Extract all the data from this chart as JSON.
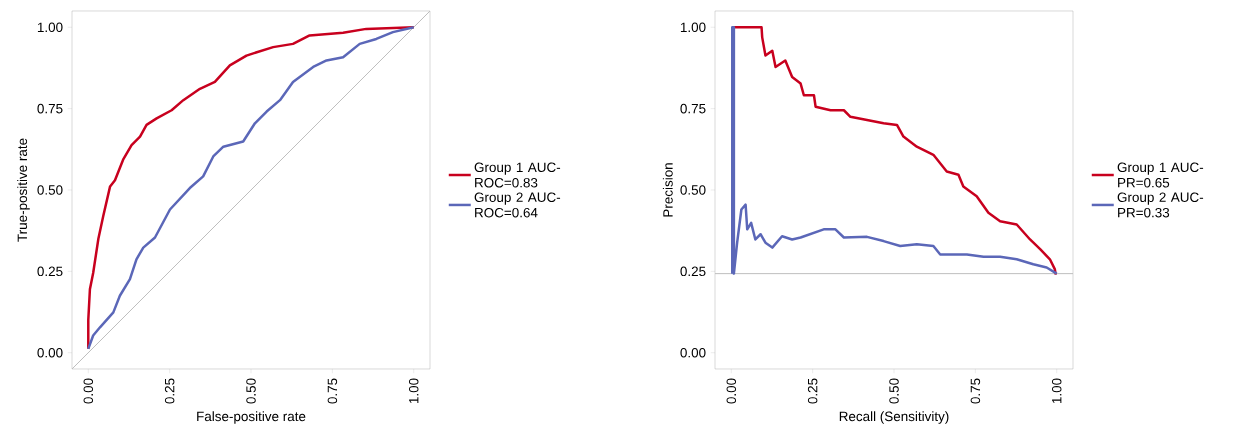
{
  "chart_data": [
    {
      "type": "line",
      "xlabel": "False-positive rate",
      "ylabel": "True-positive rate",
      "xlim": [
        -0.05,
        1.05
      ],
      "ylim": [
        -0.05,
        1.05
      ],
      "xticks": [
        {
          "value": 0,
          "label": "0.00"
        },
        {
          "value": 0.25,
          "label": "0.25"
        },
        {
          "value": 0.5,
          "label": "0.50"
        },
        {
          "value": 0.75,
          "label": "0.75"
        },
        {
          "value": 1,
          "label": "1.00"
        }
      ],
      "yticks": [
        {
          "value": 0,
          "label": "0.00"
        },
        {
          "value": 0.25,
          "label": "0.25"
        },
        {
          "value": 0.5,
          "label": "0.50"
        },
        {
          "value": 0.75,
          "label": "0.75"
        },
        {
          "value": 1,
          "label": "1.00"
        }
      ],
      "grid": false,
      "legend": "right",
      "line_style": "solid",
      "marker": "none",
      "series": [
        {
          "color": "#bebebe",
          "x": [
            -0.05,
            1.05
          ],
          "values": [
            -0.05,
            1.05
          ]
        },
        {
          "name": "Group 1 AUC-ROC=0.83",
          "color": "#c8001e",
          "x": [
            0,
            0,
            0.005,
            0.015,
            0.031,
            0.046,
            0.067,
            0.082,
            0.107,
            0.133,
            0.159,
            0.179,
            0.21,
            0.256,
            0.292,
            0.343,
            0.389,
            0.435,
            0.486,
            0.568,
            0.629,
            0.68,
            0.783,
            0.854,
            1
          ],
          "values": [
            0.012,
            0.1,
            0.195,
            0.245,
            0.35,
            0.42,
            0.511,
            0.53,
            0.593,
            0.638,
            0.664,
            0.7,
            0.72,
            0.745,
            0.776,
            0.811,
            0.832,
            0.883,
            0.913,
            0.939,
            0.949,
            0.975,
            0.983,
            0.995,
            1
          ]
        },
        {
          "name": "Group 2 AUC-ROC=0.64",
          "color": "#5b67b8",
          "x": [
            0,
            0.015,
            0.036,
            0.077,
            0.097,
            0.128,
            0.148,
            0.169,
            0.205,
            0.251,
            0.312,
            0.353,
            0.384,
            0.415,
            0.476,
            0.512,
            0.548,
            0.589,
            0.629,
            0.691,
            0.732,
            0.783,
            0.834,
            0.885,
            0.936,
            1
          ],
          "values": [
            0.012,
            0.053,
            0.078,
            0.124,
            0.175,
            0.226,
            0.287,
            0.323,
            0.354,
            0.44,
            0.506,
            0.542,
            0.603,
            0.633,
            0.649,
            0.705,
            0.741,
            0.776,
            0.832,
            0.878,
            0.898,
            0.908,
            0.949,
            0.964,
            0.985,
            1
          ]
        }
      ]
    },
    {
      "type": "line",
      "xlabel": "Recall (Sensitivity)",
      "ylabel": "Precision",
      "xlim": [
        -0.05,
        1.05
      ],
      "ylim": [
        -0.05,
        1.05
      ],
      "xticks": [
        {
          "value": 0,
          "label": "0.00"
        },
        {
          "value": 0.25,
          "label": "0.25"
        },
        {
          "value": 0.5,
          "label": "0.50"
        },
        {
          "value": 0.75,
          "label": "0.75"
        },
        {
          "value": 1,
          "label": "1.00"
        }
      ],
      "yticks": [
        {
          "value": 0,
          "label": "0.00"
        },
        {
          "value": 0.25,
          "label": "0.25"
        },
        {
          "value": 0.5,
          "label": "0.50"
        },
        {
          "value": 0.75,
          "label": "0.75"
        },
        {
          "value": 1,
          "label": "1.00"
        }
      ],
      "grid": false,
      "legend": "right",
      "line_style": "solid",
      "marker": "none",
      "ref_lines": [
        {
          "axis": "y",
          "value": 0.243,
          "color": "#bebebe"
        }
      ],
      "series": [
        {
          "name": "Group 1 AUC-PR=0.65",
          "color": "#c8001e",
          "x": [
            0.008,
            0.093,
            0.095,
            0.105,
            0.126,
            0.136,
            0.166,
            0.187,
            0.213,
            0.223,
            0.254,
            0.259,
            0.305,
            0.346,
            0.366,
            0.417,
            0.468,
            0.509,
            0.529,
            0.57,
            0.621,
            0.662,
            0.698,
            0.713,
            0.754,
            0.79,
            0.826,
            0.877,
            0.918,
            0.949,
            0.979,
            0.994,
            0.997
          ],
          "values": [
            1,
            1,
            0.969,
            0.913,
            0.928,
            0.878,
            0.898,
            0.847,
            0.827,
            0.791,
            0.791,
            0.756,
            0.745,
            0.745,
            0.725,
            0.715,
            0.705,
            0.7,
            0.664,
            0.633,
            0.608,
            0.557,
            0.547,
            0.511,
            0.481,
            0.43,
            0.404,
            0.394,
            0.348,
            0.318,
            0.287,
            0.257,
            0.24
          ]
        },
        {
          "name": "Group 2 AUC-PR=0.33",
          "color": "#5b67b8",
          "x": [
            0.003,
            0.003,
            0.008,
            0.008,
            0.018,
            0.031,
            0.044,
            0.049,
            0.061,
            0.074,
            0.09,
            0.105,
            0.126,
            0.156,
            0.187,
            0.213,
            0.284,
            0.32,
            0.346,
            0.417,
            0.468,
            0.519,
            0.57,
            0.621,
            0.642,
            0.724,
            0.775,
            0.826,
            0.877,
            0.928,
            0.969,
            1
          ],
          "values": [
            0.243,
            1,
            1,
            0.243,
            0.338,
            0.44,
            0.455,
            0.379,
            0.399,
            0.348,
            0.364,
            0.338,
            0.323,
            0.358,
            0.348,
            0.354,
            0.379,
            0.379,
            0.354,
            0.356,
            0.343,
            0.328,
            0.333,
            0.328,
            0.302,
            0.302,
            0.295,
            0.295,
            0.287,
            0.272,
            0.262,
            0.243
          ]
        }
      ]
    }
  ]
}
